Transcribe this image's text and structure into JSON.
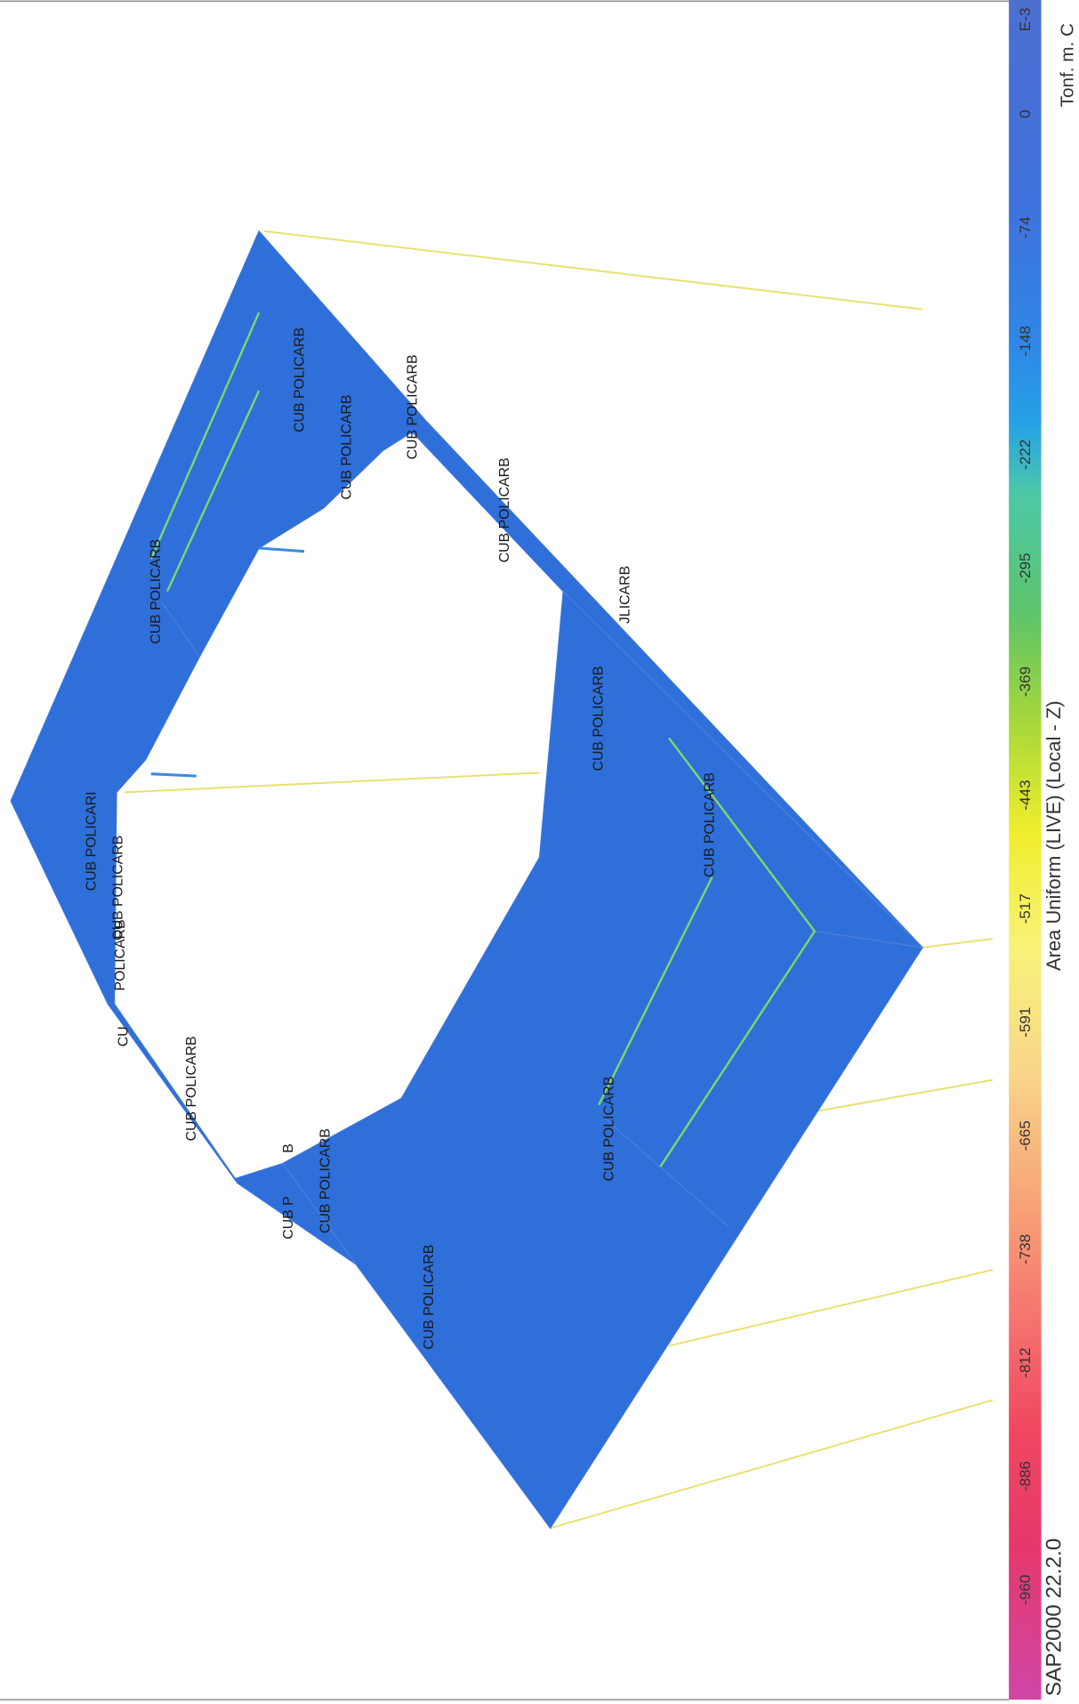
{
  "units": "Tonf. m. C",
  "legend_title": "Area Uniform (LIVE) (Local - Z)",
  "program": "SAP2000 22.2.0",
  "colorbar_labels": [
    "E-3",
    "0",
    "-74",
    "-148",
    "-222",
    "-295",
    "-369",
    "-443",
    "-517",
    "-591",
    "-665",
    "-738",
    "-812",
    "-886",
    "-960"
  ],
  "area_labels": [
    "CUB POLICARB",
    "CUB POLICARB",
    "CUB POLICARB",
    "CUB POLICARB",
    "CUB POLICARB",
    "JLICARB",
    "CUB POLICARB",
    "CUB POLICARB",
    "CUB POLICARI",
    "CUB POLICARB",
    "POLICARB",
    "CU",
    "CUB POLICARB",
    "CUB POLICARB",
    "CUB POLICARB",
    "B",
    "CUB P",
    "CUB POLICARB"
  ]
}
